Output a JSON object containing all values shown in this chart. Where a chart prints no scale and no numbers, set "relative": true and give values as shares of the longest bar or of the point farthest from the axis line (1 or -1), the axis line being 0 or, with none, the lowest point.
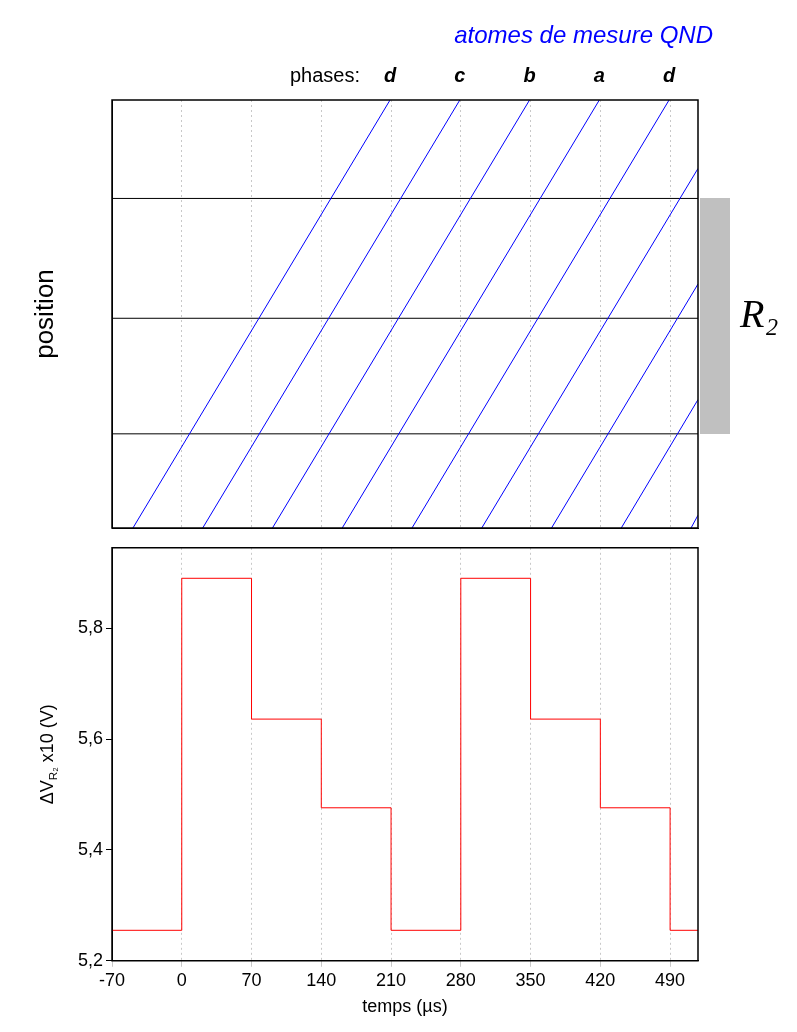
{
  "chart_data": [
    {
      "type": "line",
      "title": "atomes de mesure QND",
      "ylabel": "position",
      "relative": true,
      "xlim": [
        -70,
        518
      ],
      "xticks": [
        -70,
        0,
        70,
        140,
        210,
        280,
        350,
        420,
        490
      ],
      "tick_labels": false,
      "grid": "x",
      "series": [
        {
          "color": "#0000ff",
          "x": [
            -49,
            209
          ],
          "values": [
            0,
            1
          ]
        },
        {
          "color": "#0000ff",
          "x": [
            21,
            279
          ],
          "values": [
            0,
            1
          ]
        },
        {
          "color": "#0000ff",
          "x": [
            91,
            349
          ],
          "values": [
            0,
            1
          ]
        },
        {
          "color": "#0000ff",
          "x": [
            161,
            419
          ],
          "values": [
            0,
            1
          ]
        },
        {
          "color": "#0000ff",
          "x": [
            231,
            489
          ],
          "values": [
            0,
            1
          ]
        },
        {
          "color": "#0000ff",
          "x": [
            301,
            518
          ],
          "values": [
            0,
            0.84
          ]
        },
        {
          "color": "#0000ff",
          "x": [
            371,
            518
          ],
          "values": [
            0,
            0.57
          ]
        },
        {
          "color": "#0000ff",
          "x": [
            441,
            518
          ],
          "values": [
            0,
            0.3
          ]
        },
        {
          "color": "#0000ff",
          "x": [
            511,
            518
          ],
          "values": [
            0,
            0.03
          ]
        }
      ],
      "ref_lines": [
        {
          "axis": "y",
          "value": 0.77,
          "color": "#000000"
        },
        {
          "axis": "y",
          "value": 0.49,
          "color": "#000000"
        },
        {
          "axis": "y",
          "value": 0.22,
          "color": "#000000"
        }
      ],
      "annotations": [
        "phases:",
        {
          "text": "d",
          "x": 209,
          "y": 1
        },
        {
          "text": "c",
          "x": 279,
          "y": 1
        },
        {
          "text": "b",
          "x": 349,
          "y": 1
        },
        {
          "text": "a",
          "x": 419,
          "y": 1
        },
        {
          "text": "d",
          "x": 489,
          "y": 1
        },
        "R₂"
      ]
    },
    {
      "type": "step",
      "xlabel": "temps (µs)",
      "ylabel": "ΔV$_{R₂}$ x10 (V)",
      "xlim": [
        -70,
        518
      ],
      "xticks": [
        -70,
        0,
        70,
        140,
        210,
        280,
        350,
        420,
        490
      ],
      "ylim": [
        5.2,
        5.945
      ],
      "yticks": [
        {
          "value": 5.2,
          "label": "5,2"
        },
        {
          "value": 5.4,
          "label": "5,4"
        },
        {
          "value": 5.6,
          "label": "5,6"
        },
        {
          "value": 5.8,
          "label": "5,8"
        }
      ],
      "grid": "x",
      "series": [
        {
          "color": "#ff0000",
          "x": [
            -70,
            0,
            70,
            140,
            210,
            280,
            350,
            420,
            490,
            518
          ],
          "values": [
            5.255,
            5.89,
            5.636,
            5.476,
            5.255,
            5.89,
            5.636,
            5.476,
            5.255,
            5.255
          ]
        }
      ]
    }
  ]
}
